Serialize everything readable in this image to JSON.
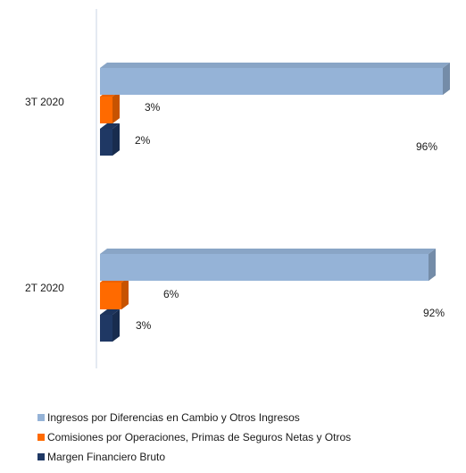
{
  "chart_data": {
    "type": "bar",
    "orientation": "horizontal",
    "style": "3d",
    "categories": [
      "3T 2020",
      "2T 2020"
    ],
    "series": [
      {
        "name": "Ingresos por Diferencias en Cambio y Otros Ingresos",
        "color": "#95B3D7",
        "values": [
          96,
          92
        ],
        "labels": [
          "96%",
          "92%"
        ]
      },
      {
        "name": "Comisiones por Operaciones, Primas de Seguros Netas y Otros",
        "color": "#FF6A00",
        "values": [
          3,
          6
        ],
        "labels": [
          "3%",
          "6%"
        ]
      },
      {
        "name": "Margen Financiero Bruto",
        "color": "#1F3864",
        "values": [
          2,
          3
        ],
        "labels": [
          "2%",
          "3%"
        ]
      }
    ],
    "unit": "%",
    "xlim": [
      0,
      100
    ],
    "legend_position": "bottom",
    "grid": false
  }
}
